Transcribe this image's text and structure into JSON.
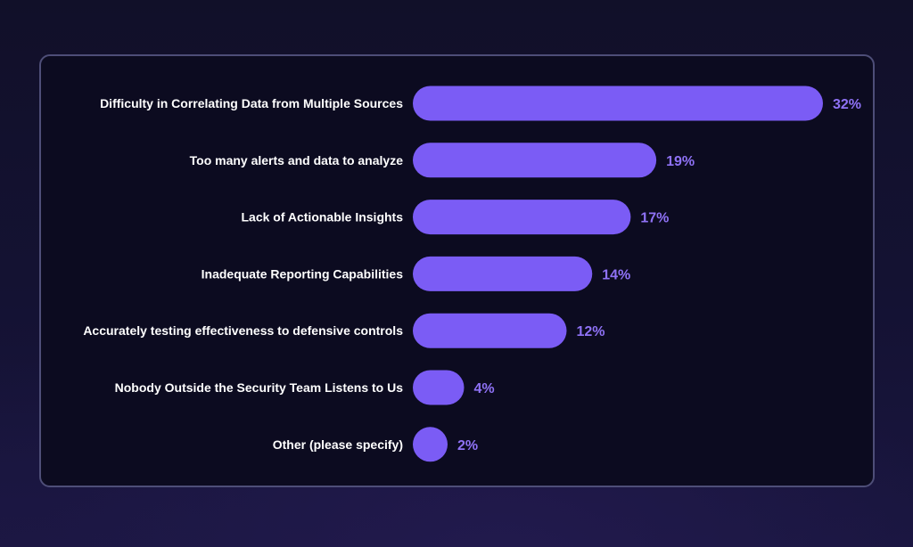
{
  "colors": {
    "bar": "#7b5cf5",
    "value_label": "#8f72f6",
    "category_label": "#ffffff",
    "panel_border": "#4e4e78",
    "panel_background": "#0c0b20"
  },
  "chart_data": {
    "type": "bar",
    "orientation": "horizontal",
    "title": "",
    "xlabel": "",
    "ylabel": "",
    "grid": false,
    "legend": "none",
    "value_suffix": "%",
    "xlim": [
      0,
      32
    ],
    "categories": [
      "Difficulty in Correlating Data from Multiple Sources",
      "Too many alerts and data to analyze",
      "Lack of Actionable Insights",
      "Inadequate Reporting Capabilities",
      "Accurately testing effectiveness to defensive controls",
      "Nobody Outside the Security Team Listens to Us",
      "Other (please specify)"
    ],
    "values": [
      32,
      19,
      17,
      14,
      12,
      4,
      2
    ]
  }
}
